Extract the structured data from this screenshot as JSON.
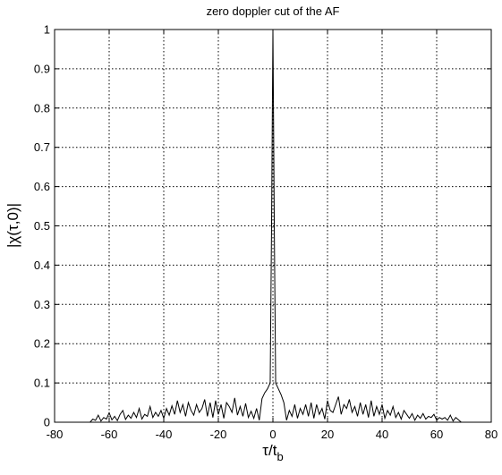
{
  "chart_data": {
    "type": "line",
    "title": "zero doppler cut of the AF",
    "xlabel": {
      "main": "τ/t",
      "sub": "b"
    },
    "ylabel": "|χ(τ,0)|",
    "xlim": [
      -80,
      80
    ],
    "ylim": [
      0,
      1
    ],
    "xticks": [
      -80,
      -60,
      -40,
      -20,
      0,
      20,
      40,
      60,
      80
    ],
    "yticks": [
      0,
      0.1,
      0.2,
      0.3,
      0.4,
      0.5,
      0.6,
      0.7,
      0.8,
      0.9,
      1
    ],
    "grid": true,
    "line_color": "#000000",
    "series": [
      {
        "x": [
          -69,
          -67,
          -66,
          -65,
          -64,
          -63,
          -62,
          -61,
          -60,
          -59,
          -58,
          -57,
          -56,
          -55,
          -54,
          -53,
          -52,
          -51,
          -50,
          -49,
          -48,
          -47,
          -46,
          -45,
          -44,
          -43,
          -42,
          -41,
          -40,
          -39,
          -38,
          -37,
          -36,
          -35,
          -34,
          -33,
          -32,
          -31,
          -30,
          -29,
          -28,
          -27,
          -26,
          -25,
          -24,
          -23,
          -22,
          -21,
          -20,
          -19,
          -18,
          -17,
          -16,
          -15,
          -14,
          -13,
          -12,
          -11,
          -10,
          -9,
          -8,
          -7,
          -6,
          -5,
          -4,
          -3,
          -2,
          -1,
          -0.5,
          0,
          0.5,
          1,
          2,
          3,
          4,
          5,
          6,
          7,
          8,
          9,
          10,
          11,
          12,
          13,
          14,
          15,
          16,
          17,
          18,
          19,
          20,
          21,
          22,
          23,
          24,
          25,
          26,
          27,
          28,
          29,
          30,
          31,
          32,
          33,
          34,
          35,
          36,
          37,
          38,
          39,
          40,
          41,
          42,
          43,
          44,
          45,
          46,
          47,
          48,
          49,
          50,
          51,
          52,
          53,
          54,
          55,
          56,
          57,
          58,
          59,
          60,
          61,
          62,
          63,
          64,
          65,
          66,
          67,
          69
        ],
        "y": [
          0,
          0,
          0.008,
          0.005,
          0.018,
          0.003,
          0.012,
          0.008,
          0.024,
          0.006,
          0.015,
          0.004,
          0.02,
          0.03,
          0.007,
          0.018,
          0.01,
          0.025,
          0.012,
          0.035,
          0.008,
          0.02,
          0.015,
          0.04,
          0.012,
          0.025,
          0.015,
          0.03,
          0.01,
          0.035,
          0.018,
          0.042,
          0.02,
          0.055,
          0.025,
          0.045,
          0.015,
          0.05,
          0.03,
          0.018,
          0.045,
          0.025,
          0.035,
          0.058,
          0.015,
          0.05,
          0.012,
          0.055,
          0.02,
          0.045,
          0.01,
          0.05,
          0.04,
          0.025,
          0.062,
          0.018,
          0.04,
          0.015,
          0.048,
          0.012,
          0.028,
          0.01,
          0.035,
          0.005,
          0.06,
          0.075,
          0.085,
          0.1,
          0.5,
          1,
          0.5,
          0.1,
          0.085,
          0.07,
          0.05,
          0.005,
          0.03,
          0.015,
          0.045,
          0.01,
          0.035,
          0.02,
          0.045,
          0.015,
          0.05,
          0.01,
          0.045,
          0.02,
          0.035,
          0.008,
          0.055,
          0.03,
          0.025,
          0.045,
          0.065,
          0.02,
          0.045,
          0.035,
          0.058,
          0.025,
          0.04,
          0.015,
          0.05,
          0.02,
          0.045,
          0.012,
          0.055,
          0.015,
          0.04,
          0.02,
          0.045,
          0.01,
          0.03,
          0.018,
          0.04,
          0.012,
          0.025,
          0.008,
          0.03,
          0.02,
          0.01,
          0.022,
          0.005,
          0.018,
          0.01,
          0.022,
          0.008,
          0.015,
          0.012,
          0.02,
          0.005,
          0.012,
          0.008,
          0.012,
          0.005,
          0.018,
          0.003,
          0.012,
          0
        ]
      }
    ]
  }
}
